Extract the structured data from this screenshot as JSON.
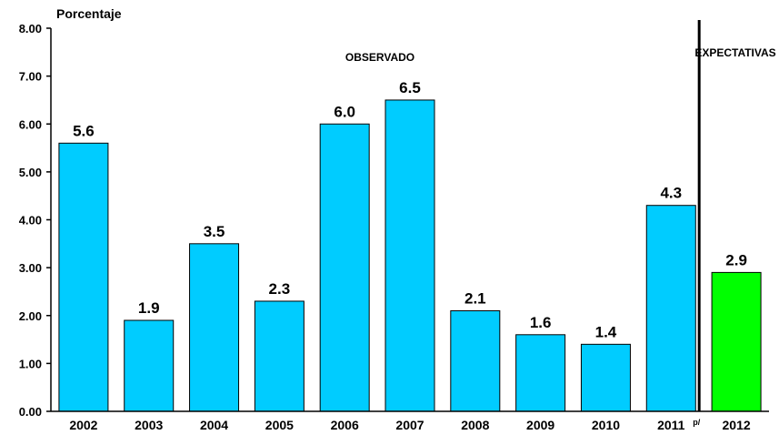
{
  "chart_data": {
    "type": "bar",
    "ylabel": "Porcentaje",
    "categories": [
      "2002",
      "2003",
      "2004",
      "2005",
      "2006",
      "2007",
      "2008",
      "2009",
      "2010",
      "2011",
      "2012"
    ],
    "category_suffixes": [
      "",
      "",
      "",
      "",
      "",
      "",
      "",
      "",
      "",
      "p/",
      ""
    ],
    "values": [
      5.6,
      1.9,
      3.5,
      2.3,
      6.0,
      6.5,
      2.1,
      1.6,
      1.4,
      4.3,
      2.9
    ],
    "value_labels": [
      "5.6",
      "1.9",
      "3.5",
      "2.3",
      "6.0",
      "6.5",
      "2.1",
      "1.6",
      "1.4",
      "4.3",
      "2.9"
    ],
    "y_ticks": [
      "0.00",
      "1.00",
      "2.00",
      "3.00",
      "4.00",
      "5.00",
      "6.00",
      "7.00",
      "8.00"
    ],
    "ylim": [
      0,
      8
    ],
    "grid": false,
    "annotations": {
      "observed": "OBSERVADO",
      "expected": "EXPECTATIVAS"
    },
    "colors": {
      "observed": "#00ccff",
      "expected": "#00ff00",
      "outline": "#000000"
    },
    "expected_from_index": 10
  }
}
